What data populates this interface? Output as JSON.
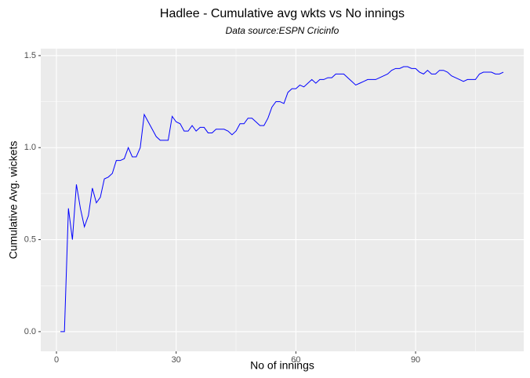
{
  "chart_data": {
    "type": "line",
    "title": "Hadlee - Cumulative avg wkts vs No innings",
    "subtitle": "Data source:ESPN Cricinfo",
    "x_label": "No of innings",
    "y_label": "Cumulative Avg. wickets",
    "x": [
      1,
      2,
      3,
      4,
      5,
      6,
      7,
      8,
      9,
      10,
      11,
      12,
      13,
      14,
      15,
      16,
      17,
      18,
      19,
      20,
      21,
      22,
      23,
      24,
      25,
      26,
      27,
      28,
      29,
      30,
      31,
      32,
      33,
      34,
      35,
      36,
      37,
      38,
      39,
      40,
      41,
      42,
      43,
      44,
      45,
      46,
      47,
      48,
      49,
      50,
      51,
      52,
      53,
      54,
      55,
      56,
      57,
      58,
      59,
      60,
      61,
      62,
      63,
      64,
      65,
      66,
      67,
      68,
      69,
      70,
      71,
      72,
      73,
      74,
      75,
      76,
      77,
      78,
      79,
      80,
      81,
      82,
      83,
      84,
      85,
      86,
      87,
      88,
      89,
      90,
      91,
      92,
      93,
      94,
      95,
      96,
      97,
      98,
      99,
      100,
      101,
      102,
      103,
      104,
      105,
      106,
      107,
      108,
      109,
      110,
      111,
      112
    ],
    "series": [
      {
        "name": "Cumulative avg wkts",
        "color": "#0000ff",
        "values": [
          0,
          0,
          0.67,
          0.5,
          0.8,
          0.67,
          0.57,
          0.63,
          0.78,
          0.7,
          0.73,
          0.83,
          0.84,
          0.86,
          0.93,
          0.93,
          0.94,
          1.0,
          0.95,
          0.95,
          1.0,
          1.18,
          1.14,
          1.1,
          1.06,
          1.04,
          1.04,
          1.04,
          1.17,
          1.14,
          1.13,
          1.09,
          1.09,
          1.12,
          1.09,
          1.11,
          1.11,
          1.08,
          1.08,
          1.1,
          1.1,
          1.1,
          1.09,
          1.07,
          1.09,
          1.13,
          1.13,
          1.16,
          1.16,
          1.14,
          1.12,
          1.12,
          1.16,
          1.22,
          1.25,
          1.25,
          1.24,
          1.3,
          1.32,
          1.32,
          1.34,
          1.33,
          1.35,
          1.37,
          1.35,
          1.37,
          1.37,
          1.38,
          1.38,
          1.4,
          1.4,
          1.4,
          1.38,
          1.36,
          1.34,
          1.35,
          1.36,
          1.37,
          1.37,
          1.37,
          1.38,
          1.39,
          1.4,
          1.42,
          1.43,
          1.43,
          1.44,
          1.44,
          1.43,
          1.43,
          1.41,
          1.4,
          1.42,
          1.4,
          1.4,
          1.42,
          1.42,
          1.41,
          1.39,
          1.38,
          1.37,
          1.36,
          1.37,
          1.37,
          1.37,
          1.4,
          1.41,
          1.41,
          1.41,
          1.4,
          1.4,
          1.41
        ]
      }
    ],
    "xlim": [
      -3.93,
      117.1
    ],
    "ylim": [
      -0.107,
      1.538
    ],
    "xticks": [
      0,
      30,
      60,
      90
    ],
    "yticks": [
      {
        "value": 0,
        "label": "0.0"
      },
      0.5,
      {
        "value": 1,
        "label": "1.0"
      },
      1.5
    ],
    "x_minor_breaks": [
      15,
      45,
      75,
      105
    ],
    "y_minor_breaks": [
      0.25,
      0.75,
      1.25
    ],
    "grid": true
  }
}
